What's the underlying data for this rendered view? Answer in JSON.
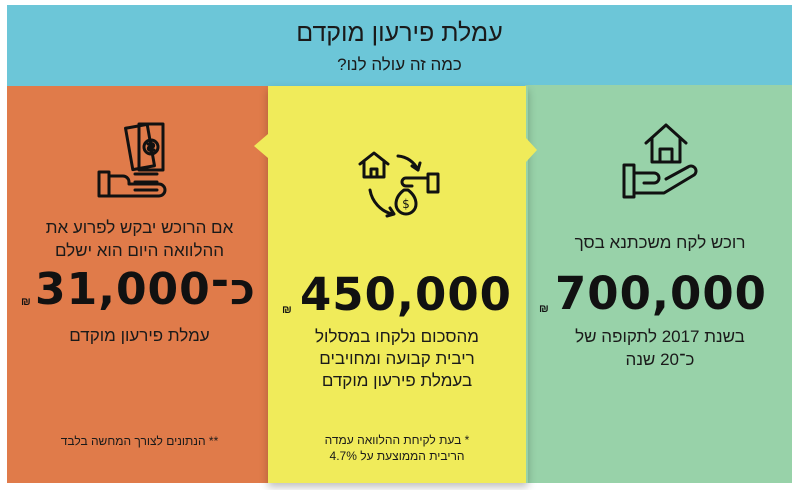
{
  "header": {
    "title": "עמלת פירעון מוקדם",
    "subtitle": "כמה זה עולה לנו?"
  },
  "panels": {
    "green": {
      "label": "רוכש לקח משכתנא בסך",
      "amount": "700,000",
      "currency": "₪",
      "desc_line1": "בשנת 2017 לתקופה של",
      "desc_line2": "כ־20 שנה",
      "icon": "house-in-hand-icon",
      "color": "#98d2a9"
    },
    "yellow": {
      "amount": "450,000",
      "currency": "₪",
      "desc_line1": "מהסכום נלקחו במסלול",
      "desc_line2": "ריבית קבועה ומחויבים",
      "desc_line3": "בעמלת פירעון מוקדם",
      "note_line1": "* בעת לקיחת ההלוואה עמדה",
      "note_line2": "הריבית הממוצעת על 4.7%",
      "icon": "house-money-cycle-icon",
      "color": "#f0eb5a"
    },
    "red": {
      "label_line1": "אם הרוכש יבקש לפרוע את",
      "label_line2": "ההלוואה היום הוא ישלם",
      "amount": "כ־31,000",
      "currency": "₪",
      "desc": "עמלת פירעון מוקדם",
      "note": "** הנתונים לצורך המחשה בלבד",
      "icon": "cash-in-hand-icon",
      "color": "#e07b4a"
    }
  },
  "header_color": "#6cc6d8"
}
